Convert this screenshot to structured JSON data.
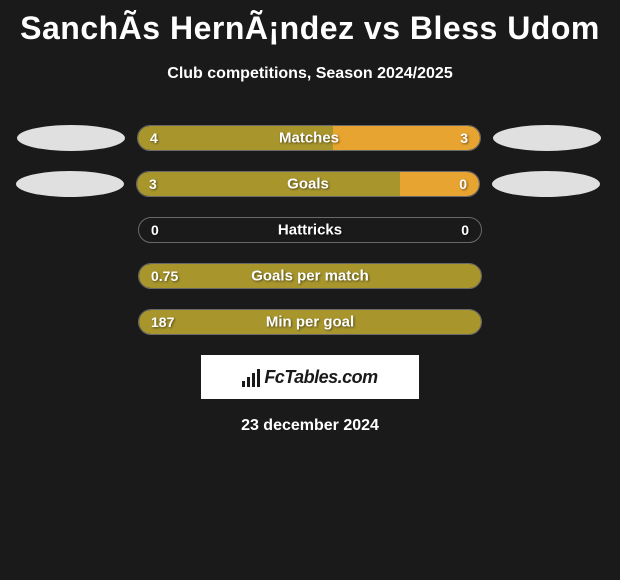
{
  "title": "SanchÃ­s HernÃ¡ndez vs Bless Udom",
  "subtitle": "Club competitions, Season 2024/2025",
  "date": "23 december 2024",
  "logo_text": "FcTables.com",
  "colors": {
    "left_bar": "#a8962d",
    "right_bar": "#e8a430",
    "background": "#1a1a1a"
  },
  "rows": [
    {
      "label": "Matches",
      "left_value": "4",
      "right_value": "3",
      "left_pct": 57,
      "right_pct": 43,
      "show_ellipses": true,
      "ellipse_indent": false
    },
    {
      "label": "Goals",
      "left_value": "3",
      "right_value": "0",
      "left_pct": 77,
      "right_pct": 23,
      "show_ellipses": true,
      "ellipse_indent": true
    },
    {
      "label": "Hattricks",
      "left_value": "0",
      "right_value": "0",
      "left_pct": 0,
      "right_pct": 0,
      "show_ellipses": false
    },
    {
      "label": "Goals per match",
      "left_value": "0.75",
      "right_value": "",
      "left_pct": 100,
      "right_pct": 0,
      "show_ellipses": false
    },
    {
      "label": "Min per goal",
      "left_value": "187",
      "right_value": "",
      "left_pct": 100,
      "right_pct": 0,
      "show_ellipses": false
    }
  ]
}
